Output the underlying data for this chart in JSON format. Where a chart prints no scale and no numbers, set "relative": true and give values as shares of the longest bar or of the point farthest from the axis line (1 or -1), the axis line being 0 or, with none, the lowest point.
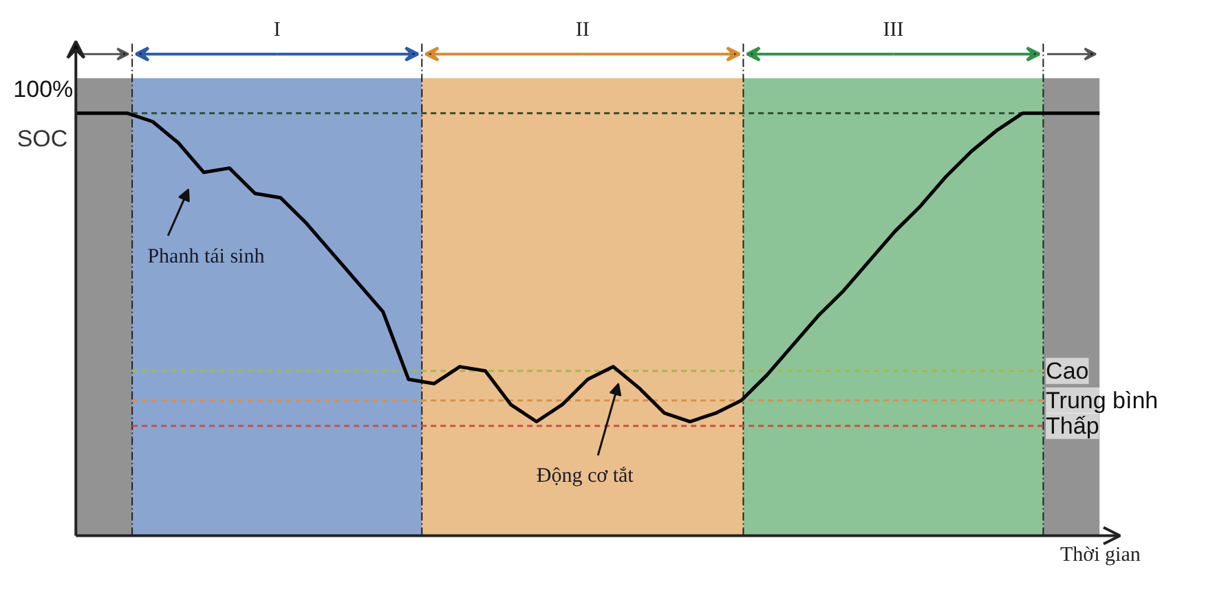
{
  "chart_data": {
    "type": "line",
    "relative": true,
    "xlabel": "Thời gian",
    "ylabel": "SOC",
    "tick_labels": false,
    "grid": false,
    "marker": "none",
    "line_style": "solid",
    "categories": [
      null,
      null,
      null,
      null,
      null,
      null,
      null,
      null,
      null,
      null,
      null,
      null,
      null,
      null,
      null,
      null,
      null,
      null,
      null,
      null,
      null,
      null,
      null,
      null,
      null,
      null,
      null,
      null,
      null,
      null,
      null,
      null,
      null,
      null,
      null,
      null,
      null,
      null,
      null,
      null,
      null
    ],
    "series": [
      {
        "color": "#000000",
        "values": [
          1.0,
          1.0,
          1.0,
          0.98,
          0.93,
          0.86,
          0.87,
          0.81,
          0.8,
          0.74,
          0.67,
          0.6,
          0.53,
          0.37,
          0.36,
          0.4,
          0.39,
          0.31,
          0.27,
          0.31,
          0.37,
          0.4,
          0.35,
          0.29,
          0.27,
          0.29,
          0.32,
          0.38,
          0.45,
          0.52,
          0.58,
          0.65,
          0.72,
          0.78,
          0.85,
          0.91,
          0.96,
          1.0,
          1.0,
          1.0,
          1.0
        ]
      }
    ],
    "ref_lines": [
      {
        "axis": "y",
        "value": 1.0,
        "label": null,
        "color": "#2f4f2f",
        "line_style": "dashed"
      },
      {
        "axis": "y",
        "value": 0.39,
        "label": "Cao",
        "color": "#a5b84a",
        "line_style": "dashed"
      },
      {
        "axis": "y",
        "value": 0.32,
        "label": "Trung bình",
        "color": "#d9904a",
        "line_style": "dashed"
      },
      {
        "axis": "y",
        "value": 0.26,
        "label": "Thấp",
        "color": "#cc5040",
        "line_style": "dashed"
      }
    ],
    "annotations": [
      "I",
      "II",
      "III",
      "100%",
      "Phanh tái sinh",
      "Động cơ tắt"
    ]
  }
}
